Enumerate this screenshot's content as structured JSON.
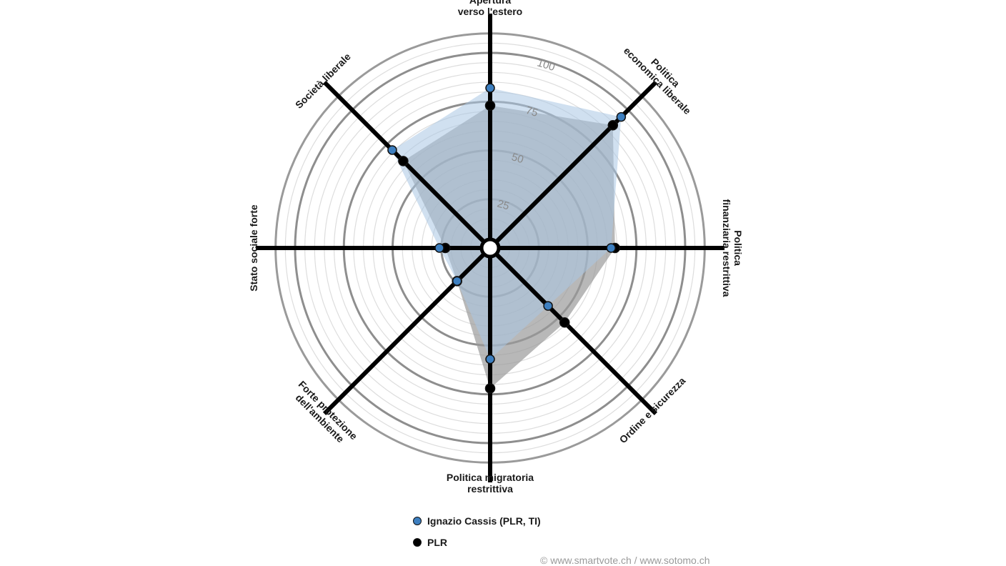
{
  "chart_data": {
    "type": "radar",
    "axes": [
      "Apertura\nverso l'estero",
      "Politica\neconomica liberale",
      "Politica\nfinanziaria restrittiva",
      "Ordine e sicurezza",
      "Politica migratoria\nrestrittiva",
      "Forte protezione\ndell'ambiente",
      "Stato sociale forte",
      "Società liberale"
    ],
    "rlim": [
      0,
      100
    ],
    "ring_ticks": [
      25,
      50,
      75,
      100
    ],
    "ring_tick_labels": [
      "25",
      "50",
      "75",
      "100"
    ],
    "series": [
      {
        "name": "Ignazio Cassis (PLR, TI)",
        "color": "#3d7fc0",
        "fill": "#a9c6e3",
        "values": [
          82,
          95,
          62,
          42,
          57,
          24,
          26,
          71
        ]
      },
      {
        "name": "PLR",
        "color": "#000000",
        "fill": "#9a9a9a",
        "values": [
          73,
          89,
          64,
          54,
          72,
          24,
          23,
          63
        ]
      }
    ]
  },
  "credit": "© www.smartvote.ch / www.sotomo.ch"
}
